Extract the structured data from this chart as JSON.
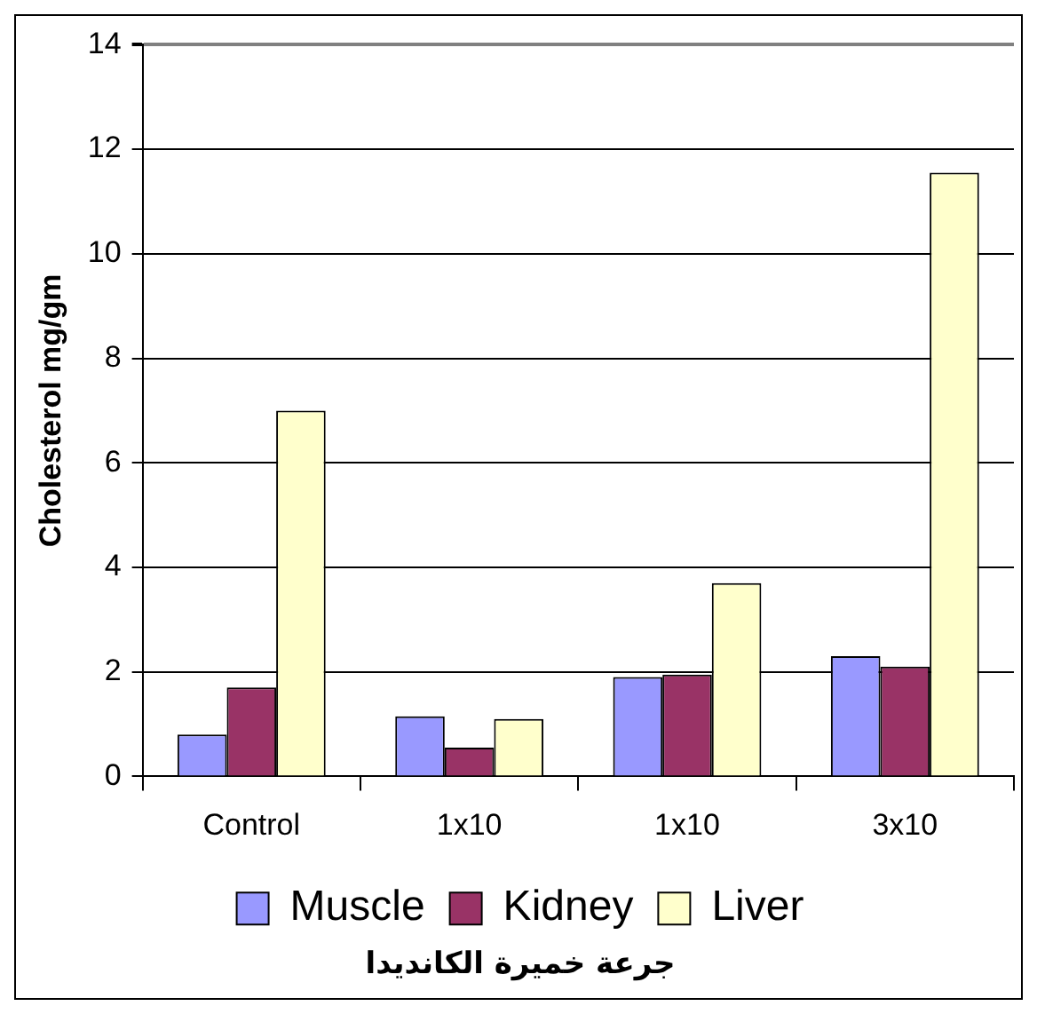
{
  "chart_data": {
    "type": "bar",
    "xlabel": "جرعة خميرة الكانديدا",
    "ylabel": "Cholesterol mg/gm",
    "categories": [
      "Control",
      "1x10",
      "1x10",
      "3x10"
    ],
    "series": [
      {
        "name": "Muscle",
        "color": "#9999ff",
        "values": [
          0.8,
          1.15,
          1.9,
          2.3
        ]
      },
      {
        "name": "Kidney",
        "color": "#993366",
        "values": [
          1.7,
          0.55,
          1.95,
          2.1
        ]
      },
      {
        "name": "Liver",
        "color": "#ffffcc",
        "values": [
          7.0,
          1.1,
          3.7,
          11.55
        ]
      }
    ],
    "ylim": [
      0,
      14
    ],
    "yticks": [
      0,
      2,
      4,
      6,
      8,
      10,
      12,
      14
    ],
    "grid": "y",
    "legend": "bottom"
  }
}
